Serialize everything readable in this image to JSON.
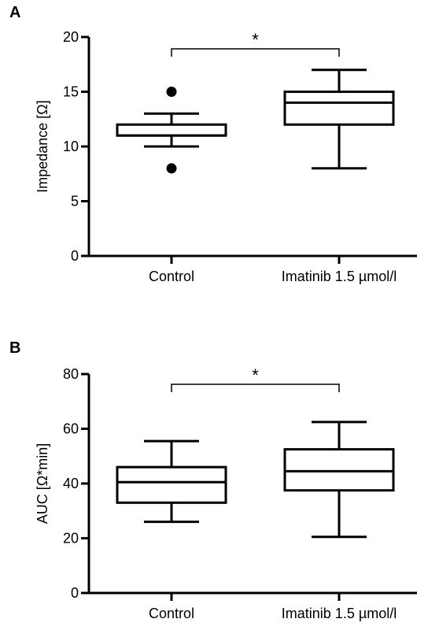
{
  "chart_data": [
    {
      "type": "box",
      "panel_label": "A",
      "ylabel": "Impedance  [Ω]",
      "ylim": [
        0,
        20
      ],
      "yticks": [
        0,
        5,
        10,
        15,
        20
      ],
      "categories": [
        "Control",
        "Imatinib 1.5 µmol/l"
      ],
      "boxes": [
        {
          "category": "Control",
          "whisker_low": 10,
          "q1": 11,
          "median": 11,
          "q3": 12,
          "whisker_high": 13,
          "outliers": [
            15,
            8
          ]
        },
        {
          "category": "Imatinib 1.5 µmol/l",
          "whisker_low": 8,
          "q1": 12,
          "median": 14,
          "q3": 15,
          "whisker_high": 17,
          "outliers": []
        }
      ],
      "significance": {
        "label": "*",
        "between": [
          0,
          1
        ]
      }
    },
    {
      "type": "box",
      "panel_label": "B",
      "ylabel": "AUC [Ω*min]",
      "ylim": [
        0,
        80
      ],
      "yticks": [
        0,
        20,
        40,
        60,
        80
      ],
      "categories": [
        "Control",
        "Imatinib 1.5 µmol/l"
      ],
      "boxes": [
        {
          "category": "Control",
          "whisker_low": 26,
          "q1": 33,
          "median": 40.5,
          "q3": 46,
          "whisker_high": 55.5,
          "outliers": []
        },
        {
          "category": "Imatinib 1.5 µmol/l",
          "whisker_low": 20.5,
          "q1": 37.5,
          "median": 44.5,
          "q3": 52.5,
          "whisker_high": 62.5,
          "outliers": []
        }
      ],
      "significance": {
        "label": "*",
        "between": [
          0,
          1
        ]
      }
    }
  ]
}
